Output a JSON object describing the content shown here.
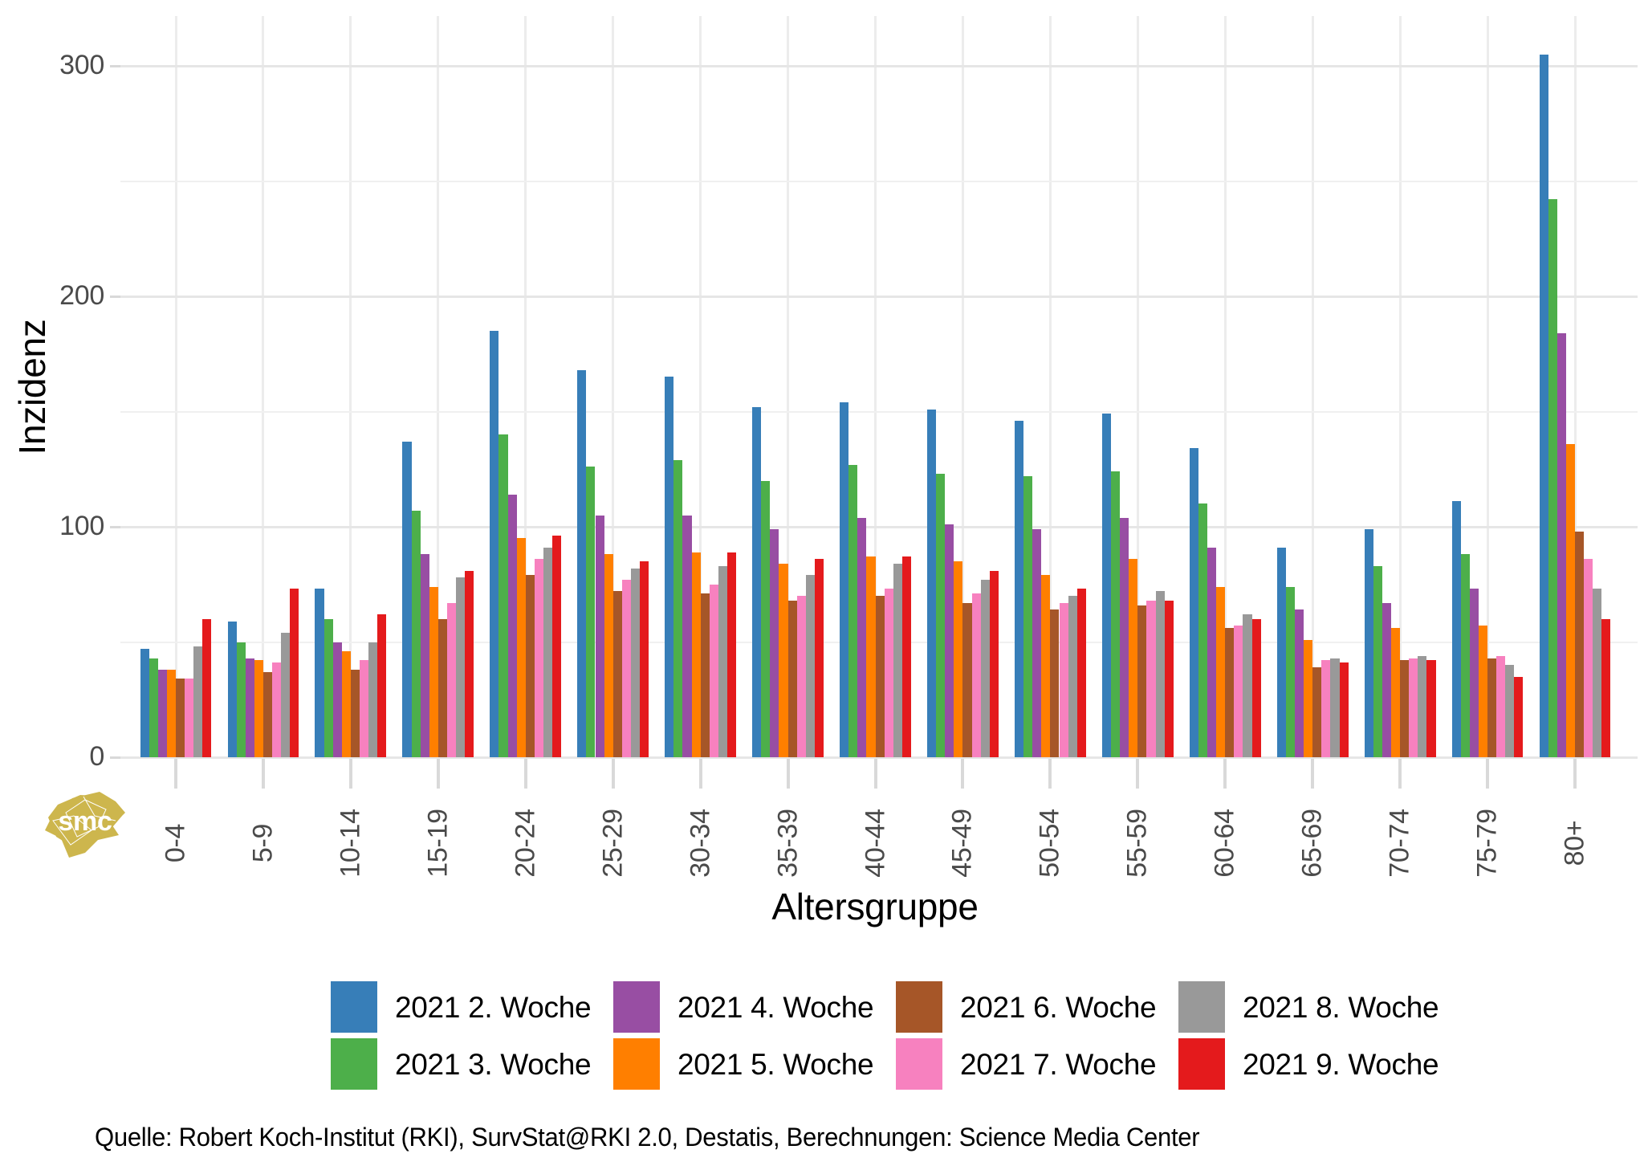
{
  "y_axis": {
    "title": "Inzidenz",
    "tick_labels": [
      "0",
      "100",
      "200",
      "300"
    ]
  },
  "x_axis": {
    "title": "Altersgruppe"
  },
  "source": "Quelle: Robert Koch-Institut (RKI), SurvStat@RKI 2.0, Destatis, Berechnungen: Science Media Center",
  "logo": {
    "text": "smc",
    "color": "#CDB64D"
  },
  "chart_data": {
    "type": "bar",
    "title": "",
    "xlabel": "Altersgruppe",
    "ylabel": "Inzidenz",
    "ylim": [
      0,
      320
    ],
    "grid": true,
    "legend_position": "bottom",
    "y_major_ticks": [
      0,
      100,
      200,
      300
    ],
    "y_minor_ticks": [
      50,
      150,
      250
    ],
    "categories": [
      "0-4",
      "5-9",
      "10-14",
      "15-19",
      "20-24",
      "25-29",
      "30-34",
      "35-39",
      "40-44",
      "45-49",
      "50-54",
      "55-59",
      "60-64",
      "65-69",
      "70-74",
      "75-79",
      "80+"
    ],
    "series": [
      {
        "name": "2021 2. Woche",
        "color": "#377EB8",
        "values": [
          47,
          59,
          73,
          137,
          185,
          168,
          165,
          152,
          154,
          151,
          146,
          149,
          134,
          91,
          99,
          111,
          305
        ]
      },
      {
        "name": "2021 3. Woche",
        "color": "#4DAF4A",
        "values": [
          43,
          50,
          60,
          107,
          140,
          126,
          129,
          120,
          127,
          123,
          122,
          124,
          110,
          74,
          83,
          88,
          242
        ]
      },
      {
        "name": "2021 4. Woche",
        "color": "#984EA3",
        "values": [
          38,
          43,
          50,
          88,
          114,
          105,
          105,
          99,
          104,
          101,
          99,
          104,
          91,
          64,
          67,
          73,
          184
        ]
      },
      {
        "name": "2021 5. Woche",
        "color": "#FF7F00",
        "values": [
          38,
          42,
          46,
          74,
          95,
          88,
          89,
          84,
          87,
          85,
          79,
          86,
          74,
          51,
          56,
          57,
          136
        ]
      },
      {
        "name": "2021 6. Woche",
        "color": "#A65628",
        "values": [
          34,
          37,
          38,
          60,
          79,
          72,
          71,
          68,
          70,
          67,
          64,
          66,
          56,
          39,
          42,
          43,
          98
        ]
      },
      {
        "name": "2021 7. Woche",
        "color": "#F781BF",
        "values": [
          34,
          41,
          42,
          67,
          86,
          77,
          75,
          70,
          73,
          71,
          67,
          68,
          57,
          42,
          43,
          44,
          86
        ]
      },
      {
        "name": "2021 8. Woche",
        "color": "#999999",
        "values": [
          48,
          54,
          50,
          78,
          91,
          82,
          83,
          79,
          84,
          77,
          70,
          72,
          62,
          43,
          44,
          40,
          73
        ]
      },
      {
        "name": "2021 9. Woche",
        "color": "#E41A1C",
        "values": [
          60,
          73,
          62,
          81,
          96,
          85,
          89,
          86,
          87,
          81,
          73,
          68,
          60,
          41,
          42,
          35,
          60
        ]
      }
    ]
  }
}
